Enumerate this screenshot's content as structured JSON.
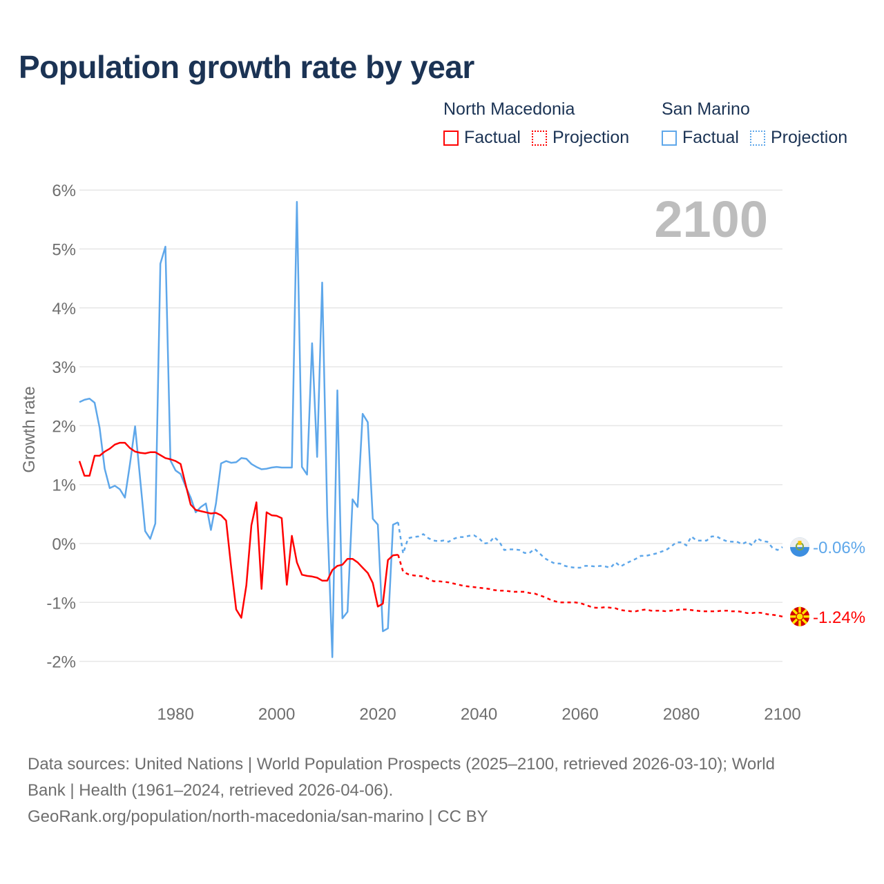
{
  "title": "Population growth rate by year",
  "legend": {
    "groups": [
      {
        "name": "North Macedonia",
        "color": "#ff0000",
        "factual": "Factual",
        "projection": "Projection"
      },
      {
        "name": "San Marino",
        "color": "#5ea7ea",
        "factual": "Factual",
        "projection": "Projection"
      }
    ]
  },
  "year_display": "2100",
  "footer": {
    "line1": "Data sources: United Nations | World Population Prospects (2025–2100, retrieved 2026-03-10); World",
    "line2": "Bank | Health (1961–2024, retrieved 2026-04-06).",
    "line3": "GeoRank.org/population/north-macedonia/san-marino | CC BY"
  },
  "chart_data": {
    "type": "line",
    "title": "Population growth rate by year",
    "xlabel": "",
    "ylabel": "Growth rate",
    "xlim": [
      1961,
      2100
    ],
    "ylim": [
      -2,
      6
    ],
    "x_ticks": [
      1980,
      2000,
      2020,
      2040,
      2060,
      2080,
      2100
    ],
    "y_ticks": [
      -2,
      -1,
      0,
      1,
      2,
      3,
      4,
      5,
      6
    ],
    "y_tick_labels": [
      "-2%",
      "-1%",
      "0%",
      "1%",
      "2%",
      "3%",
      "4%",
      "5%",
      "6%"
    ],
    "grid": true,
    "legend_position": "top-right",
    "series": [
      {
        "name": "North Macedonia",
        "color": "#ff0000",
        "end_label": "-1.24%",
        "factual_start": 1961,
        "factual": [
          1.4,
          1.15,
          1.15,
          1.49,
          1.49,
          1.56,
          1.61,
          1.68,
          1.71,
          1.71,
          1.62,
          1.56,
          1.54,
          1.53,
          1.55,
          1.55,
          1.5,
          1.45,
          1.43,
          1.4,
          1.35,
          1.0,
          0.66,
          0.57,
          0.55,
          0.53,
          0.51,
          0.52,
          0.48,
          0.39,
          -0.4,
          -1.12,
          -1.26,
          -0.71,
          0.31,
          0.7,
          -0.77,
          0.53,
          0.48,
          0.47,
          0.43,
          -0.7,
          0.13,
          -0.32,
          -0.53,
          -0.55,
          -0.56,
          -0.58,
          -0.63,
          -0.63,
          -0.45,
          -0.38,
          -0.36,
          -0.26,
          -0.26,
          -0.32,
          -0.41,
          -0.5,
          -0.67,
          -1.07,
          -1.02,
          -0.28,
          -0.2,
          -0.19
        ],
        "projection_start": 2024,
        "projection": [
          -0.19,
          -0.48,
          -0.52,
          -0.54,
          -0.55,
          -0.56,
          -0.6,
          -0.64,
          -0.64,
          -0.65,
          -0.66,
          -0.68,
          -0.7,
          -0.72,
          -0.73,
          -0.74,
          -0.75,
          -0.76,
          -0.77,
          -0.79,
          -0.8,
          -0.8,
          -0.81,
          -0.82,
          -0.82,
          -0.82,
          -0.84,
          -0.85,
          -0.88,
          -0.91,
          -0.95,
          -0.98,
          -1.0,
          -1.0,
          -1.0,
          -1.0,
          -1.01,
          -1.04,
          -1.07,
          -1.09,
          -1.09,
          -1.08,
          -1.09,
          -1.1,
          -1.13,
          -1.14,
          -1.15,
          -1.15,
          -1.13,
          -1.12,
          -1.14,
          -1.14,
          -1.14,
          -1.15,
          -1.14,
          -1.13,
          -1.12,
          -1.12,
          -1.13,
          -1.14,
          -1.15,
          -1.15,
          -1.15,
          -1.15,
          -1.14,
          -1.14,
          -1.15,
          -1.15,
          -1.16,
          -1.18,
          -1.18,
          -1.17,
          -1.18,
          -1.2,
          -1.21,
          -1.22,
          -1.24
        ]
      },
      {
        "name": "San Marino",
        "color": "#5ea7ea",
        "end_label": "-0.06%",
        "factual_start": 1961,
        "factual": [
          2.4,
          2.44,
          2.46,
          2.39,
          1.96,
          1.27,
          0.94,
          0.98,
          0.92,
          0.78,
          1.35,
          1.99,
          1.1,
          0.21,
          0.08,
          0.34,
          4.75,
          5.04,
          1.41,
          1.24,
          1.18,
          0.97,
          0.78,
          0.53,
          0.62,
          0.68,
          0.23,
          0.68,
          1.36,
          1.4,
          1.37,
          1.38,
          1.45,
          1.44,
          1.35,
          1.3,
          1.26,
          1.27,
          1.29,
          1.3,
          1.29,
          1.29,
          1.29,
          5.8,
          1.3,
          1.17,
          3.4,
          1.47,
          4.43,
          0.46,
          -1.93,
          2.6,
          -1.27,
          -1.16,
          0.75,
          0.62,
          2.2,
          2.06,
          0.42,
          0.32,
          -1.49,
          -1.44,
          0.32,
          0.36
        ],
        "projection_start": 2024,
        "projection": [
          0.36,
          -0.17,
          0.09,
          0.11,
          0.12,
          0.16,
          0.09,
          0.05,
          0.04,
          0.05,
          0.03,
          0.08,
          0.11,
          0.11,
          0.13,
          0.14,
          0.09,
          0.0,
          0.01,
          0.11,
          0.03,
          -0.11,
          -0.1,
          -0.1,
          -0.11,
          -0.16,
          -0.16,
          -0.09,
          -0.17,
          -0.25,
          -0.3,
          -0.34,
          -0.34,
          -0.38,
          -0.4,
          -0.41,
          -0.41,
          -0.38,
          -0.38,
          -0.39,
          -0.38,
          -0.39,
          -0.41,
          -0.32,
          -0.39,
          -0.34,
          -0.3,
          -0.26,
          -0.21,
          -0.21,
          -0.19,
          -0.17,
          -0.14,
          -0.11,
          -0.05,
          0.02,
          0.02,
          -0.03,
          0.12,
          0.05,
          0.05,
          0.05,
          0.12,
          0.12,
          0.07,
          0.04,
          0.03,
          0.03,
          -0.01,
          0.03,
          -0.03,
          0.09,
          0.04,
          0.03,
          -0.07,
          -0.11,
          -0.06
        ]
      }
    ]
  }
}
